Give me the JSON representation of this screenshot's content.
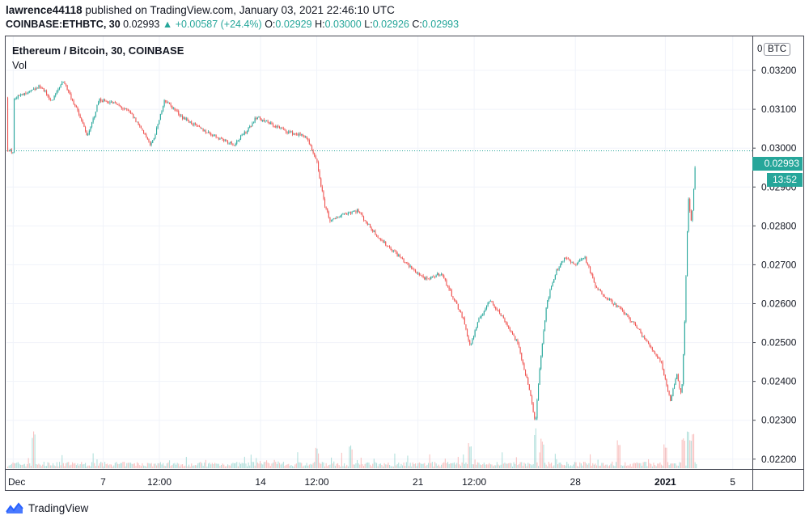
{
  "header": {
    "user": "lawrence44118",
    "published_text": "published on TradingView.com, January 03, 2021 22:46:10 UTC",
    "symbol": "COINBASE:ETHBTC, 30",
    "last": "0.02993",
    "change": "▲ +0.00587 (+24.4%)",
    "o_label": "O:",
    "o": "0.02929",
    "h_label": "H:",
    "h": "0.03000",
    "l_label": "L:",
    "l": "0.02926",
    "c_label": "C:",
    "c": "0.02993"
  },
  "legend": {
    "title": "Ethereum / Bitcoin, 30, COINBASE",
    "volume": "Vol"
  },
  "price_axis": {
    "currency": "BTC",
    "zero": "0",
    "last_price": "0.02993",
    "countdown": "13:52"
  },
  "logo": {
    "text": "TradingView",
    "icon": "tradingview-logo-icon"
  },
  "colors": {
    "up": "#26a69a",
    "down": "#ef5350",
    "grid": "#f0f3fa",
    "text": "#131722"
  },
  "chart_data": {
    "type": "candlestick",
    "symbol": "COINBASE:ETHBTC",
    "interval": "30",
    "ylim": [
      0.02185,
      0.0325
    ],
    "y_ticks": [
      "0.03200",
      "0.03100",
      "0.03000",
      "0.02900",
      "0.02800",
      "0.02700",
      "0.02600",
      "0.02500",
      "0.02400",
      "0.02300",
      "0.02200"
    ],
    "x_ticks": [
      "Dec",
      "7",
      "12:00",
      "14",
      "12:00",
      "21",
      "12:00",
      "28",
      "2021",
      "5"
    ],
    "x_tick_bold": [
      false,
      false,
      false,
      false,
      false,
      false,
      false,
      false,
      true,
      false
    ],
    "grid": true,
    "price_path": [
      {
        "day": 3.0,
        "price": 0.0313
      },
      {
        "day": 3.6,
        "price": 0.0314
      },
      {
        "day": 4.2,
        "price": 0.0316
      },
      {
        "day": 4.7,
        "price": 0.0312
      },
      {
        "day": 5.2,
        "price": 0.03175
      },
      {
        "day": 5.8,
        "price": 0.031
      },
      {
        "day": 6.3,
        "price": 0.0303
      },
      {
        "day": 6.8,
        "price": 0.03125
      },
      {
        "day": 7.5,
        "price": 0.03115
      },
      {
        "day": 8.2,
        "price": 0.0309
      },
      {
        "day": 8.8,
        "price": 0.0304
      },
      {
        "day": 9.1,
        "price": 0.03005
      },
      {
        "day": 9.4,
        "price": 0.03055
      },
      {
        "day": 9.7,
        "price": 0.03125
      },
      {
        "day": 10.5,
        "price": 0.0308
      },
      {
        "day": 11.3,
        "price": 0.0305
      },
      {
        "day": 12.0,
        "price": 0.0303
      },
      {
        "day": 12.8,
        "price": 0.0301
      },
      {
        "day": 13.3,
        "price": 0.0304
      },
      {
        "day": 13.8,
        "price": 0.0308
      },
      {
        "day": 14.5,
        "price": 0.0306
      },
      {
        "day": 15.3,
        "price": 0.0304
      },
      {
        "day": 16.0,
        "price": 0.0303
      },
      {
        "day": 16.5,
        "price": 0.0296
      },
      {
        "day": 16.8,
        "price": 0.0286
      },
      {
        "day": 17.1,
        "price": 0.0281
      },
      {
        "day": 17.6,
        "price": 0.0283
      },
      {
        "day": 18.3,
        "price": 0.0284
      },
      {
        "day": 18.8,
        "price": 0.028
      },
      {
        "day": 19.4,
        "price": 0.0276
      },
      {
        "day": 20.0,
        "price": 0.0273
      },
      {
        "day": 20.7,
        "price": 0.0269
      },
      {
        "day": 21.4,
        "price": 0.0266
      },
      {
        "day": 22.0,
        "price": 0.0268
      },
      {
        "day": 22.6,
        "price": 0.0261
      },
      {
        "day": 23.0,
        "price": 0.0256
      },
      {
        "day": 23.3,
        "price": 0.0249
      },
      {
        "day": 23.7,
        "price": 0.0256
      },
      {
        "day": 24.2,
        "price": 0.0261
      },
      {
        "day": 24.8,
        "price": 0.0256
      },
      {
        "day": 25.4,
        "price": 0.025
      },
      {
        "day": 25.9,
        "price": 0.0239
      },
      {
        "day": 26.2,
        "price": 0.0229
      },
      {
        "day": 26.4,
        "price": 0.0244
      },
      {
        "day": 26.7,
        "price": 0.026
      },
      {
        "day": 27.1,
        "price": 0.0268
      },
      {
        "day": 27.5,
        "price": 0.0272
      },
      {
        "day": 27.9,
        "price": 0.027
      },
      {
        "day": 28.4,
        "price": 0.0272
      },
      {
        "day": 28.9,
        "price": 0.0264
      },
      {
        "day": 29.5,
        "price": 0.0261
      },
      {
        "day": 30.1,
        "price": 0.0258
      },
      {
        "day": 30.7,
        "price": 0.0254
      },
      {
        "day": 31.3,
        "price": 0.0249
      },
      {
        "day": 31.8,
        "price": 0.0245
      },
      {
        "day": 32.2,
        "price": 0.0235
      },
      {
        "day": 32.5,
        "price": 0.0242
      },
      {
        "day": 32.7,
        "price": 0.0236
      },
      {
        "day": 32.85,
        "price": 0.0256
      },
      {
        "day": 33.0,
        "price": 0.0288
      },
      {
        "day": 33.15,
        "price": 0.028
      },
      {
        "day": 33.35,
        "price": 0.02993
      }
    ],
    "volume_spikes": [
      {
        "day": 3.9,
        "level": 0.9
      },
      {
        "day": 16.5,
        "level": 0.5
      },
      {
        "day": 18.0,
        "level": 0.6
      },
      {
        "day": 23.3,
        "level": 0.6
      },
      {
        "day": 26.2,
        "level": 1.0
      },
      {
        "day": 26.5,
        "level": 0.8
      },
      {
        "day": 29.9,
        "level": 0.7
      },
      {
        "day": 32.0,
        "level": 0.6
      },
      {
        "day": 32.8,
        "level": 0.75
      },
      {
        "day": 33.0,
        "level": 0.9
      },
      {
        "day": 33.2,
        "level": 0.85
      }
    ]
  }
}
